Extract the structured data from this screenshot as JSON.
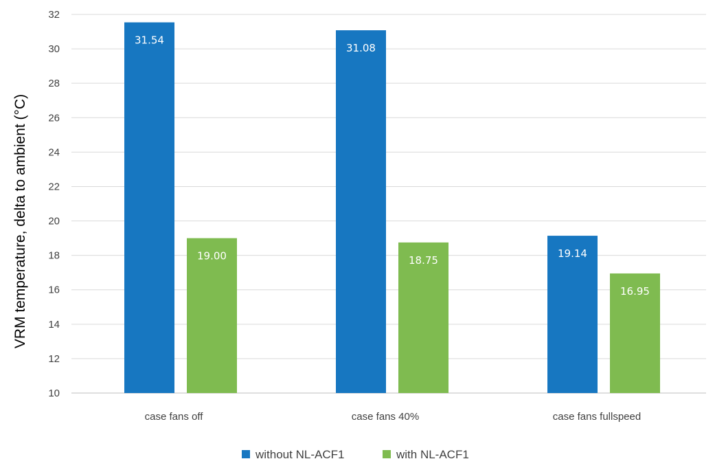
{
  "chart_data": {
    "type": "bar",
    "categories": [
      "case fans off",
      "case fans 40%",
      "case fans fullspeed"
    ],
    "series": [
      {
        "name": "without NL-ACF1",
        "values": [
          31.54,
          31.08,
          19.14
        ],
        "labels": [
          "31.54",
          "31.08",
          "19.14"
        ],
        "color": "#1777c1"
      },
      {
        "name": "with NL-ACF1",
        "values": [
          19.0,
          18.75,
          16.95
        ],
        "labels": [
          "19.00",
          "18.75",
          "16.95"
        ],
        "color": "#7fbb50"
      }
    ],
    "ylabel": "VRM temperature, delta to ambient (°C)",
    "xlabel": "",
    "ylim": [
      10,
      32
    ],
    "yticks": [
      "10",
      "12",
      "14",
      "16",
      "18",
      "20",
      "22",
      "24",
      "26",
      "28",
      "30",
      "32"
    ],
    "grid": true,
    "legend_position": "bottom"
  }
}
